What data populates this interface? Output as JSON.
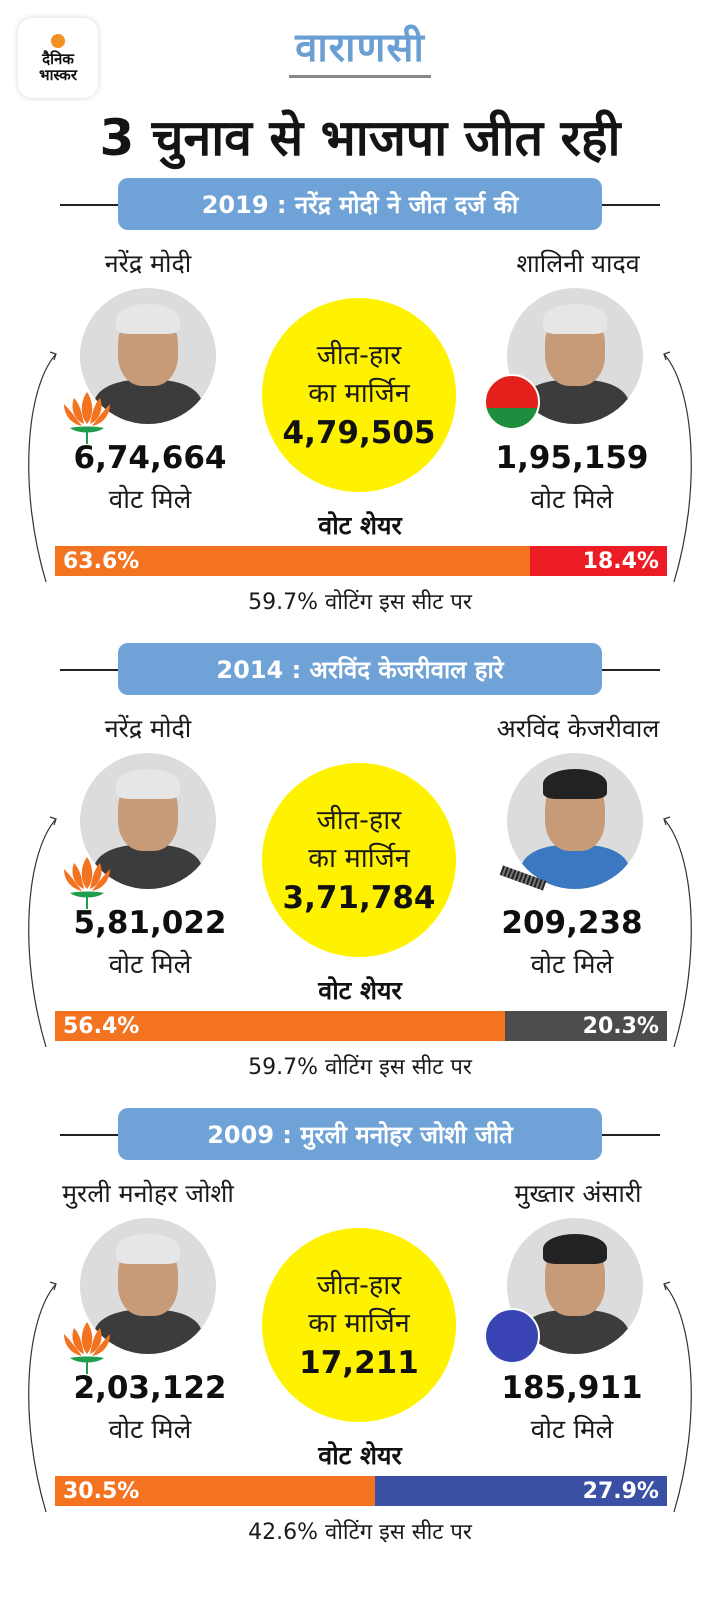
{
  "brand": {
    "logo_line1": "दैनिक",
    "logo_line2": "भास्कर",
    "logo_dot_color": "#f39023"
  },
  "header": {
    "city": "वाराणसी",
    "headline": "3 चुनाव से भाजपा जीत रही"
  },
  "labels": {
    "votes_received": "वोट मिले",
    "vote_share": "वोट शेयर",
    "margin_line1": "जीत-हार",
    "margin_line2": "का मार्जिन"
  },
  "colors": {
    "title_bg": "#6fa2d6",
    "margin_circle": "#fff200",
    "bjp": "#f37321"
  },
  "elections": [
    {
      "title": "2019 : नरेंद्र मोदी ने जीत दर्ज की",
      "winner": {
        "name": "नरेंद्र मोदी",
        "party": "BJP",
        "party_icon": "lotus-icon",
        "votes": "6,74,664",
        "share": "63.6%",
        "share_value": 63.6,
        "color": "#f37321"
      },
      "runner": {
        "name": "शालिनी यादव",
        "party": "SP",
        "party_icon": "bicycle-icon",
        "votes": "1,95,159",
        "share": "18.4%",
        "share_value": 18.4,
        "color": "#ec1c24"
      },
      "margin": "4,79,505",
      "turnout": "59.7% वोटिंग इस सीट पर"
    },
    {
      "title": "2014 : अरविंद केजरीवाल हारे",
      "winner": {
        "name": "नरेंद्र मोदी",
        "party": "BJP",
        "party_icon": "lotus-icon",
        "votes": "5,81,022",
        "share": "56.4%",
        "share_value": 56.4,
        "color": "#f37321"
      },
      "runner": {
        "name": "अरविंद केजरीवाल",
        "party": "AAP",
        "party_icon": "broom-icon",
        "votes": "209,238",
        "share": "20.3%",
        "share_value": 20.3,
        "color": "#4d4b4c"
      },
      "margin": "3,71,784",
      "turnout": "59.7% वोटिंग इस सीट पर"
    },
    {
      "title": "2009 : मुरली मनोहर जोशी जीते",
      "winner": {
        "name": "मुरली मनोहर जोशी",
        "party": "BJP",
        "party_icon": "lotus-icon",
        "votes": "2,03,122",
        "share": "30.5%",
        "share_value": 30.5,
        "color": "#f37321"
      },
      "runner": {
        "name": "मुख्तार अंसारी",
        "party": "BSP",
        "party_icon": "elephant-icon",
        "votes": "185,911",
        "share": "27.9%",
        "share_value": 27.9,
        "color": "#3a50a4"
      },
      "margin": "17,211",
      "turnout": "42.6% वोटिंग इस सीट पर"
    }
  ]
}
